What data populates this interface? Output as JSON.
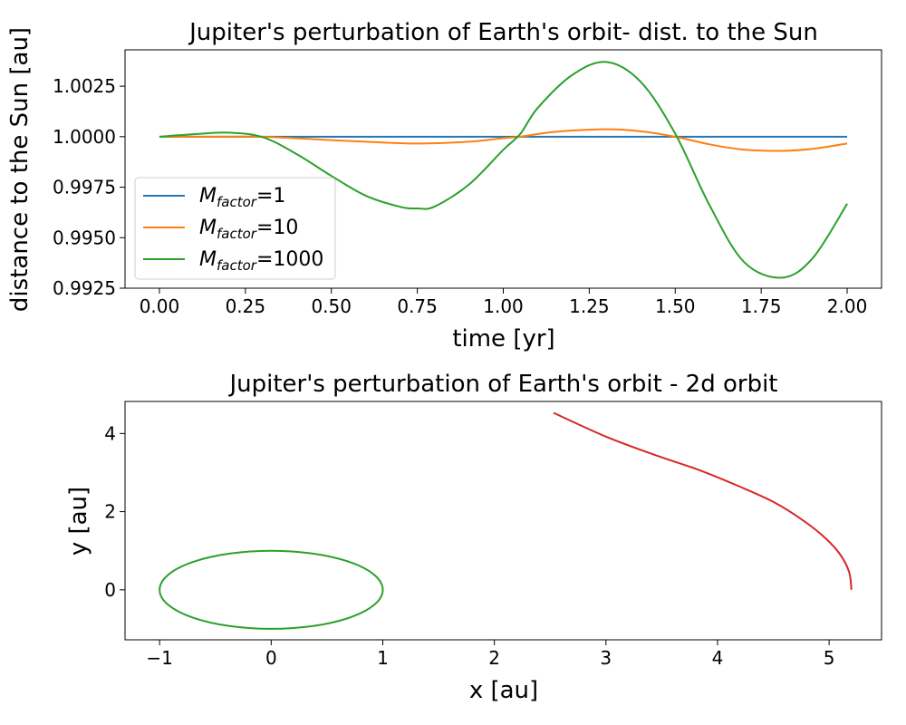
{
  "chart_data": [
    {
      "type": "line",
      "title": "Jupiter's perturbation of Earth's orbit- dist. to the Sun",
      "xlabel": "time [yr]",
      "ylabel": "distance to the Sun [au]",
      "xlim": [
        -0.1,
        2.1
      ],
      "ylim": [
        0.9925,
        1.0043
      ],
      "xticks": [
        0.0,
        0.25,
        0.5,
        0.75,
        1.0,
        1.25,
        1.5,
        1.75,
        2.0
      ],
      "xtick_labels": [
        "0.00",
        "0.25",
        "0.50",
        "0.75",
        "1.00",
        "1.25",
        "1.50",
        "1.75",
        "2.00"
      ],
      "yticks": [
        0.9925,
        0.995,
        0.9975,
        1.0,
        1.0025
      ],
      "ytick_labels": [
        "0.9925",
        "0.9950",
        "0.9975",
        "1.0000",
        "1.0025"
      ],
      "legend_position": "lower-left",
      "series": [
        {
          "name": "1",
          "color": "#1f77b4",
          "x": [
            0.0,
            0.25,
            0.5,
            0.75,
            1.0,
            1.25,
            1.5,
            1.75,
            2.0
          ],
          "y": [
            1.0,
            1.0,
            1.0,
            1.0,
            1.0,
            1.0,
            1.0,
            1.0,
            1.0
          ]
        },
        {
          "name": "10",
          "color": "#ff7f0e",
          "x": [
            0.0,
            0.1,
            0.2,
            0.3,
            0.4,
            0.5,
            0.6,
            0.75,
            0.9,
            1.0,
            1.05,
            1.15,
            1.3,
            1.4,
            1.5,
            1.6,
            1.7,
            1.81,
            1.9,
            2.0
          ],
          "y": [
            1.0,
            1.0,
            1.0,
            1.0,
            0.99992,
            0.99983,
            0.99975,
            0.99966,
            0.99975,
            0.99993,
            1.0,
            1.00024,
            1.00037,
            1.00027,
            1.0,
            0.99962,
            0.99936,
            0.9993,
            0.9994,
            0.99966
          ]
        },
        {
          "name": "1000",
          "color": "#2ca02c",
          "x": [
            0.0,
            0.1,
            0.2,
            0.3,
            0.4,
            0.5,
            0.6,
            0.7,
            0.75,
            0.8,
            0.9,
            1.0,
            1.05,
            1.1,
            1.2,
            1.3,
            1.4,
            1.5,
            1.6,
            1.7,
            1.81,
            1.9,
            2.0
          ],
          "y": [
            1.0,
            1.00012,
            1.0002,
            0.99998,
            0.99913,
            0.99806,
            0.99708,
            0.99653,
            0.99645,
            0.99654,
            0.99763,
            0.99935,
            1.00015,
            1.00142,
            1.00305,
            1.0037,
            1.00271,
            1.00015,
            0.9966,
            0.9938,
            0.99302,
            0.99399,
            0.99668
          ]
        }
      ]
    },
    {
      "type": "line",
      "title": "Jupiter's perturbation of Earth's orbit - 2d orbit",
      "xlabel": "x [au]",
      "ylabel": "y [au]",
      "xlim": [
        -1.31,
        5.47
      ],
      "ylim": [
        -1.28,
        4.82
      ],
      "xticks": [
        -1,
        0,
        1,
        2,
        3,
        4,
        5
      ],
      "xtick_labels": [
        "−1",
        "0",
        "1",
        "2",
        "3",
        "4",
        "5"
      ],
      "yticks": [
        0,
        2,
        4
      ],
      "ytick_labels": [
        "0",
        "2",
        "4"
      ],
      "series": [
        {
          "name": "",
          "color": "#2ca02c",
          "kind": "ellipse",
          "center": [
            0,
            0
          ],
          "rx": 1.0,
          "ry": 1.0
        },
        {
          "name": "",
          "color": "#d62728",
          "x": [
            5.2,
            5.18,
            5.1,
            4.96,
            4.76,
            4.5,
            4.2,
            3.83,
            3.44,
            3.0,
            2.53
          ],
          "y": [
            0.0,
            0.45,
            0.9,
            1.34,
            1.79,
            2.25,
            2.64,
            3.07,
            3.45,
            3.92,
            4.53
          ]
        }
      ]
    }
  ]
}
